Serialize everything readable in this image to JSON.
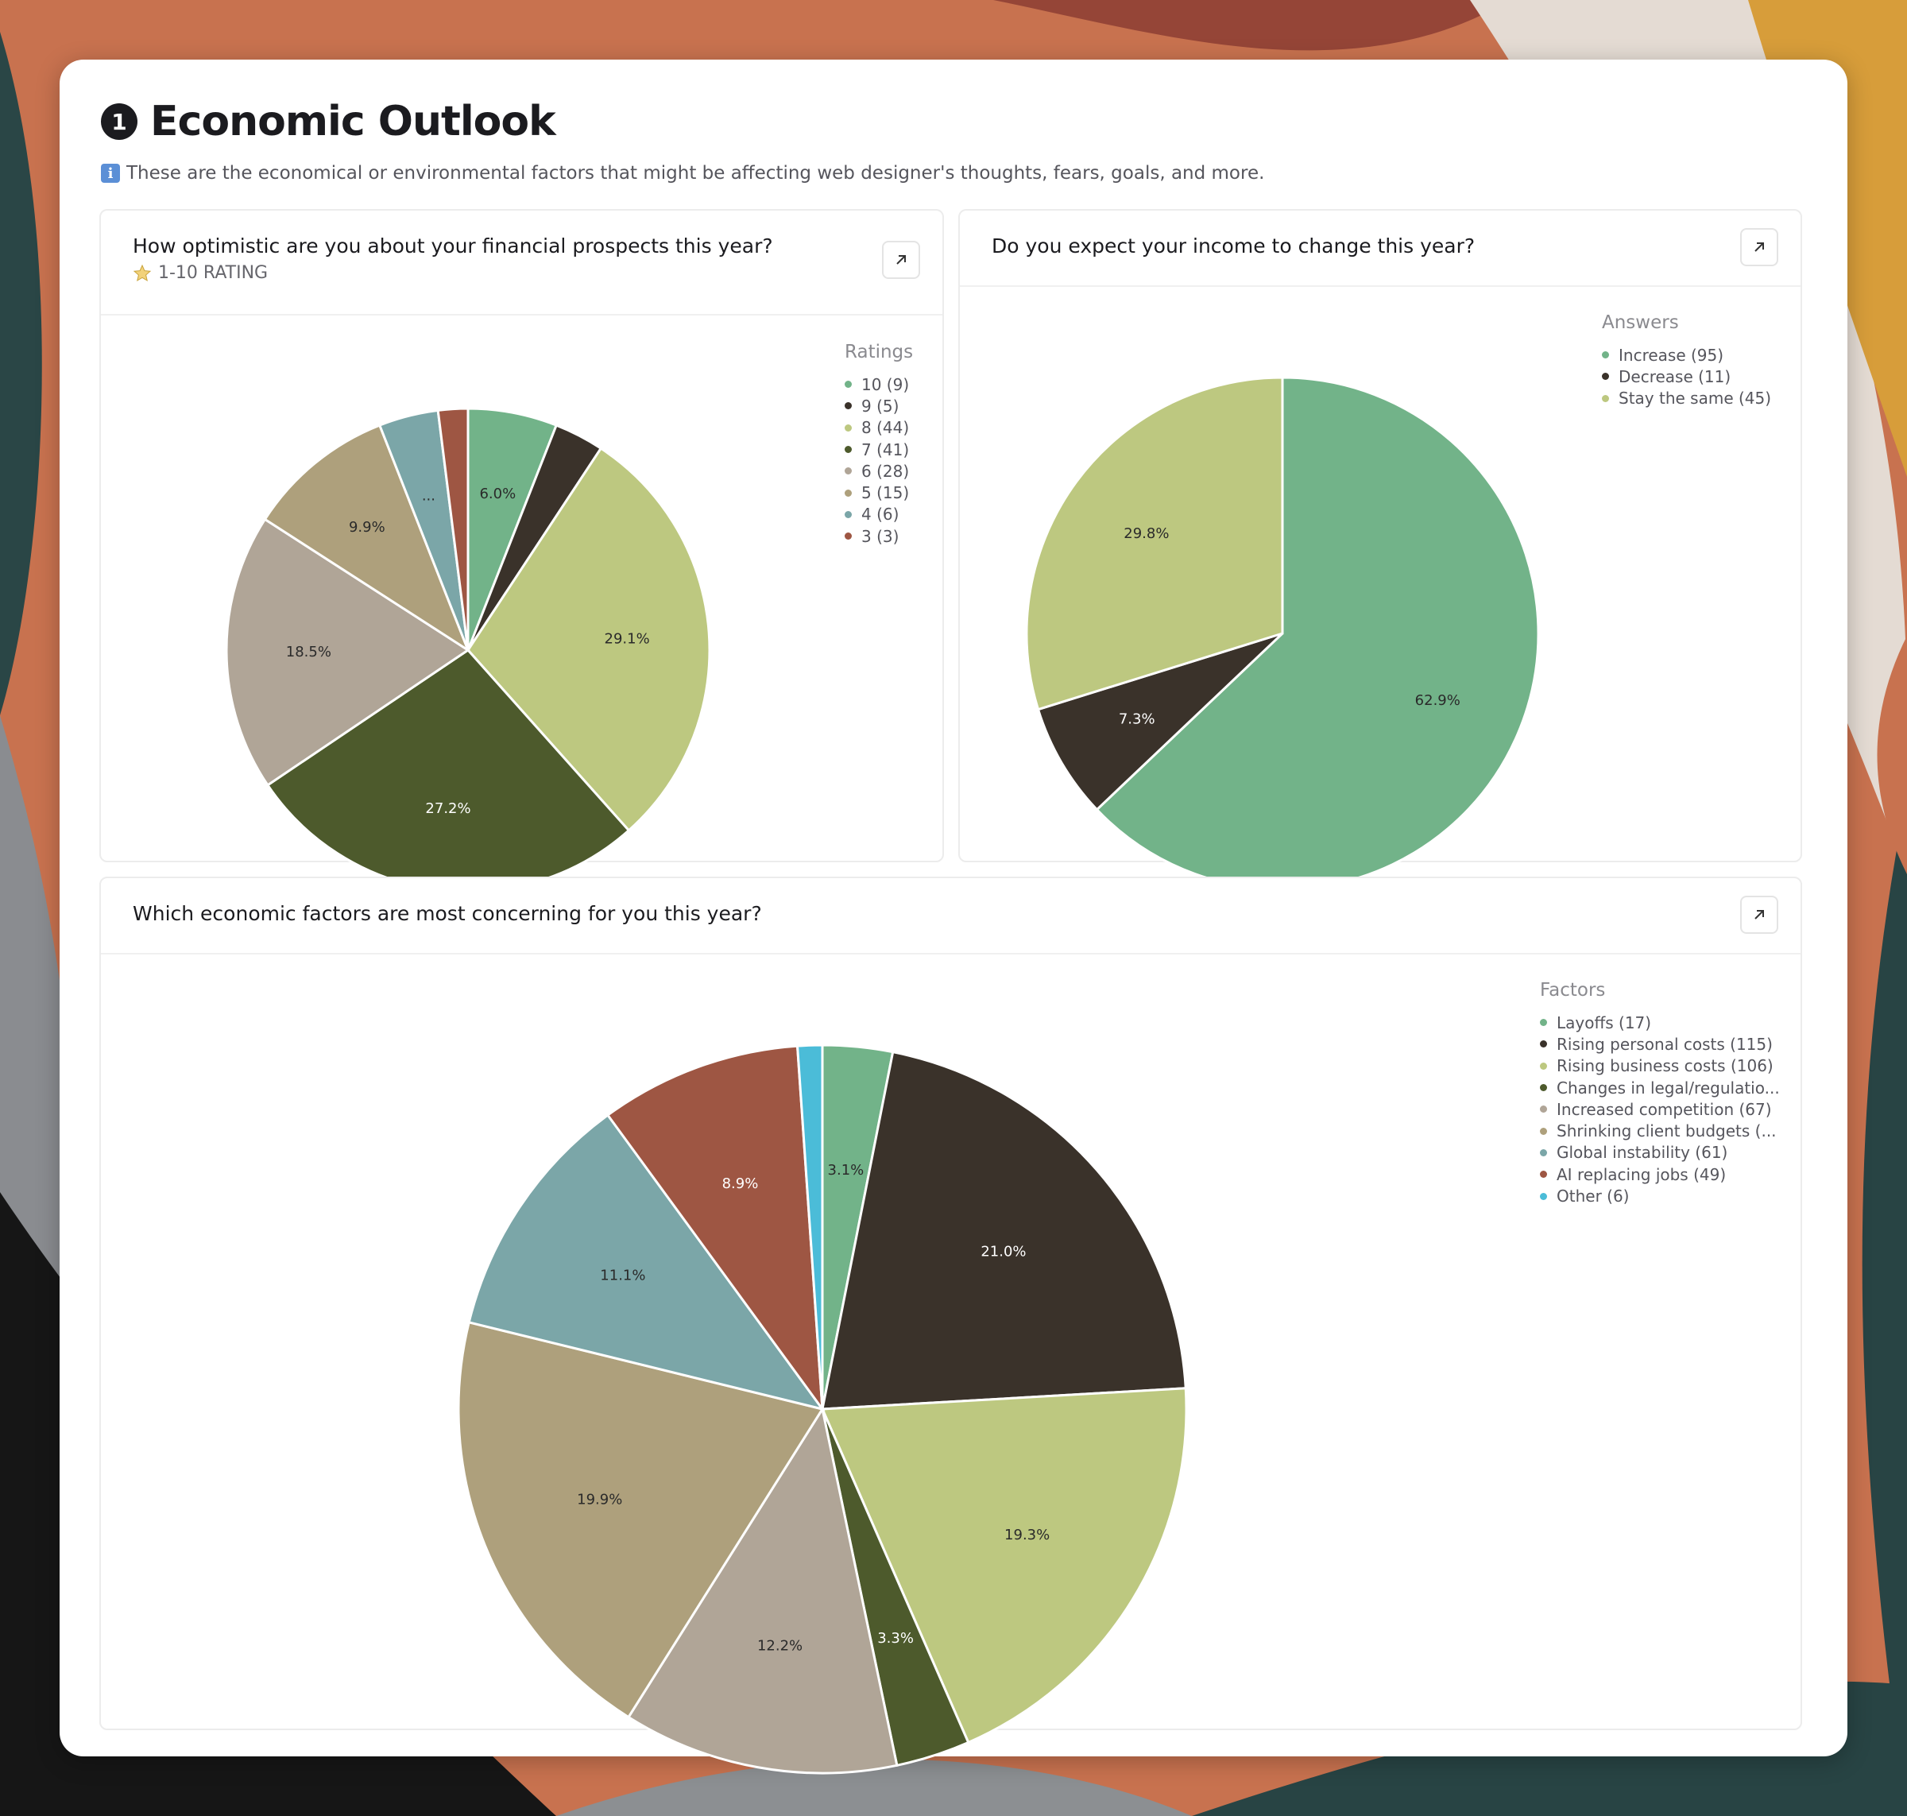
{
  "page": {
    "number": "1",
    "title": "Economic Outlook",
    "info_icon": "info-icon",
    "description": "These are the economical or environmental factors that might be affecting web designer's thoughts, fears, goals, and more."
  },
  "panels": {
    "optimism": {
      "title": "How optimistic are you about your financial prospects this year?",
      "subtitle_icon": "star-icon",
      "subtitle": "1-10 RATING",
      "expand_icon": "arrow-up-right-icon",
      "legend_title": "Ratings"
    },
    "income": {
      "title": "Do you expect your income to change this year?",
      "expand_icon": "arrow-up-right-icon",
      "legend_title": "Answers"
    },
    "factors": {
      "title": "Which economic factors are most concerning for you this year?",
      "expand_icon": "arrow-up-right-icon",
      "legend_title": "Factors"
    }
  },
  "chart_data": [
    {
      "id": "optimism",
      "type": "pie",
      "title": "How optimistic are you about your financial prospects this year?",
      "legend_position": "right",
      "slices": [
        {
          "label": "10 (9)",
          "value": 9,
          "pct_label": "6.0%",
          "color": "#72b389",
          "label_color": "#2a2a2a"
        },
        {
          "label": "9 (5)",
          "value": 5,
          "pct_label": "",
          "color": "#3a322a",
          "label_color": "#ffffff"
        },
        {
          "label": "8 (44)",
          "value": 44,
          "pct_label": "29.1%",
          "color": "#bdc880",
          "label_color": "#2a2a2a"
        },
        {
          "label": "7 (41)",
          "value": 41,
          "pct_label": "27.2%",
          "color": "#4d5a2c",
          "label_color": "#ffffff"
        },
        {
          "label": "6 (28)",
          "value": 28,
          "pct_label": "18.5%",
          "color": "#b0a597",
          "label_color": "#2a2a2a"
        },
        {
          "label": "5 (15)",
          "value": 15,
          "pct_label": "9.9%",
          "color": "#aea07c",
          "label_color": "#2a2a2a"
        },
        {
          "label": "4 (6)",
          "value": 6,
          "pct_label": "...",
          "color": "#7ba6a8",
          "label_color": "#2a2a2a"
        },
        {
          "label": "3 (3)",
          "value": 3,
          "pct_label": "",
          "color": "#9e5643",
          "label_color": "#ffffff"
        }
      ]
    },
    {
      "id": "income",
      "type": "pie",
      "title": "Do you expect your income to change this year?",
      "legend_position": "right",
      "slices": [
        {
          "label": "Increase (95)",
          "value": 95,
          "pct_label": "62.9%",
          "color": "#72b389",
          "label_color": "#2a2a2a"
        },
        {
          "label": "Decrease (11)",
          "value": 11,
          "pct_label": "7.3%",
          "color": "#3a322a",
          "label_color": "#ffffff"
        },
        {
          "label": "Stay the same (45)",
          "value": 45,
          "pct_label": "29.8%",
          "color": "#bdc880",
          "label_color": "#2a2a2a"
        }
      ]
    },
    {
      "id": "factors",
      "type": "pie",
      "title": "Which economic factors are most concerning for you this year?",
      "legend_position": "right",
      "slices": [
        {
          "label": "Layoffs (17)",
          "value": 17,
          "pct_label": "3.1%",
          "color": "#72b389",
          "label_color": "#2a2a2a"
        },
        {
          "label": "Rising personal costs (115)",
          "value": 115,
          "pct_label": "21.0%",
          "color": "#3a322a",
          "label_color": "#ffffff"
        },
        {
          "label": "Rising business costs (106)",
          "value": 106,
          "pct_label": "19.3%",
          "color": "#bdc880",
          "label_color": "#2a2a2a"
        },
        {
          "label": "Changes in legal/regulatio...",
          "value": 18,
          "pct_label": "3.3%",
          "color": "#4d5a2c",
          "label_color": "#ffffff"
        },
        {
          "label": "Increased competition (67)",
          "value": 67,
          "pct_label": "12.2%",
          "color": "#b0a597",
          "label_color": "#2a2a2a"
        },
        {
          "label": "Shrinking client budgets (...",
          "value": 109,
          "pct_label": "19.9%",
          "color": "#aea07c",
          "label_color": "#2a2a2a"
        },
        {
          "label": "Global instability (61)",
          "value": 61,
          "pct_label": "11.1%",
          "color": "#7ba6a8",
          "label_color": "#2a2a2a"
        },
        {
          "label": "AI replacing jobs (49)",
          "value": 49,
          "pct_label": "8.9%",
          "color": "#9e5643",
          "label_color": "#ffffff"
        },
        {
          "label": "Other (6)",
          "value": 6,
          "pct_label": "",
          "color": "#4bbcd8",
          "label_color": "#2a2a2a"
        }
      ]
    }
  ]
}
